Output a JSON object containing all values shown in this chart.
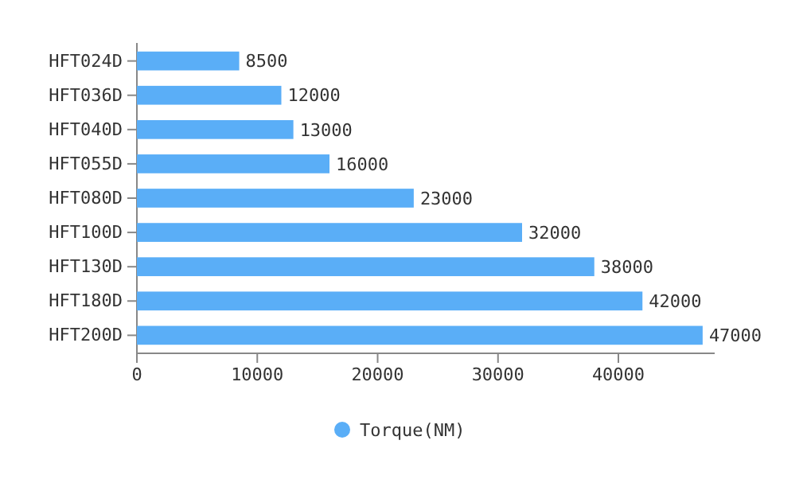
{
  "chart_data": {
    "type": "bar",
    "orientation": "horizontal",
    "categories": [
      "HFT024D",
      "HFT036D",
      "HFT040D",
      "HFT055D",
      "HFT080D",
      "HFT100D",
      "HFT130D",
      "HFT180D",
      "HFT200D"
    ],
    "series": [
      {
        "name": "Torque(NM)",
        "color": "#5aaef7",
        "values": [
          8500,
          12000,
          13000,
          16000,
          23000,
          32000,
          38000,
          42000,
          47000
        ]
      }
    ],
    "xlim": [
      0,
      48000
    ],
    "xticks": [
      0,
      10000,
      20000,
      30000,
      40000
    ],
    "data_labels": true,
    "legend": "bottom",
    "grid": false
  }
}
